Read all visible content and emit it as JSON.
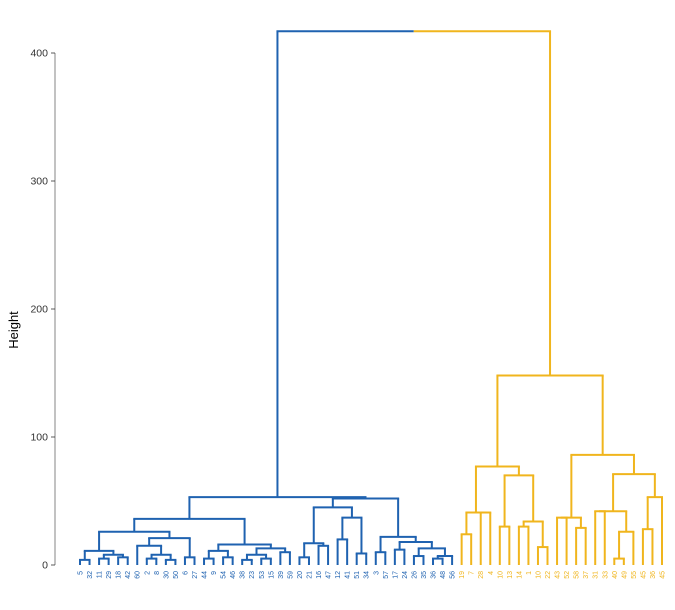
{
  "chart_data": {
    "type": "dendrogram",
    "title": "",
    "xlabel": "",
    "ylabel": "Height",
    "ylim": [
      0,
      420
    ],
    "y_ticks": [
      0,
      100,
      200,
      300,
      400
    ],
    "grid": false,
    "legend": "none",
    "colors": {
      "cluster_1": "#1F62B0",
      "cluster_2": "#F0B51D",
      "axis": "#333333"
    },
    "leaves": [
      {
        "label": "5",
        "cluster": 1
      },
      {
        "label": "32",
        "cluster": 1
      },
      {
        "label": "11",
        "cluster": 1
      },
      {
        "label": "29",
        "cluster": 1
      },
      {
        "label": "18",
        "cluster": 1
      },
      {
        "label": "42",
        "cluster": 1
      },
      {
        "label": "60",
        "cluster": 1
      },
      {
        "label": "2",
        "cluster": 1
      },
      {
        "label": "8",
        "cluster": 1
      },
      {
        "label": "30",
        "cluster": 1
      },
      {
        "label": "50",
        "cluster": 1
      },
      {
        "label": "6",
        "cluster": 1
      },
      {
        "label": "27",
        "cluster": 1
      },
      {
        "label": "44",
        "cluster": 1
      },
      {
        "label": "9",
        "cluster": 1
      },
      {
        "label": "54",
        "cluster": 1
      },
      {
        "label": "46",
        "cluster": 1
      },
      {
        "label": "38",
        "cluster": 1
      },
      {
        "label": "23",
        "cluster": 1
      },
      {
        "label": "53",
        "cluster": 1
      },
      {
        "label": "15",
        "cluster": 1
      },
      {
        "label": "39",
        "cluster": 1
      },
      {
        "label": "59",
        "cluster": 1
      },
      {
        "label": "20",
        "cluster": 1
      },
      {
        "label": "21",
        "cluster": 1
      },
      {
        "label": "16",
        "cluster": 1
      },
      {
        "label": "47",
        "cluster": 1
      },
      {
        "label": "12",
        "cluster": 1
      },
      {
        "label": "41",
        "cluster": 1
      },
      {
        "label": "51",
        "cluster": 1
      },
      {
        "label": "34",
        "cluster": 1
      },
      {
        "label": "3",
        "cluster": 1
      },
      {
        "label": "57",
        "cluster": 1
      },
      {
        "label": "17",
        "cluster": 1
      },
      {
        "label": "24",
        "cluster": 1
      },
      {
        "label": "26",
        "cluster": 1
      },
      {
        "label": "35",
        "cluster": 1
      },
      {
        "label": "36",
        "cluster": 1
      },
      {
        "label": "48",
        "cluster": 1
      },
      {
        "label": "56",
        "cluster": 1
      },
      {
        "label": "19",
        "cluster": 2
      },
      {
        "label": "7",
        "cluster": 2
      },
      {
        "label": "28",
        "cluster": 2
      },
      {
        "label": "4",
        "cluster": 2
      },
      {
        "label": "10",
        "cluster": 2
      },
      {
        "label": "13",
        "cluster": 2
      },
      {
        "label": "14",
        "cluster": 2
      },
      {
        "label": "1",
        "cluster": 2
      },
      {
        "label": "10",
        "cluster": 2
      },
      {
        "label": "22",
        "cluster": 2
      },
      {
        "label": "43",
        "cluster": 2
      },
      {
        "label": "52",
        "cluster": 2
      },
      {
        "label": "58",
        "cluster": 2
      },
      {
        "label": "37",
        "cluster": 2
      },
      {
        "label": "31",
        "cluster": 2
      },
      {
        "label": "33",
        "cluster": 2
      },
      {
        "label": "40",
        "cluster": 2
      },
      {
        "label": "49",
        "cluster": 2
      },
      {
        "label": "55",
        "cluster": 2
      },
      {
        "label": "45",
        "cluster": 2
      },
      {
        "label": "36",
        "cluster": 2
      },
      {
        "label": "45",
        "cluster": 2
      }
    ],
    "merges": [
      {
        "id": "m0",
        "left": 0,
        "right": 1,
        "height": 4
      },
      {
        "id": "m1",
        "left": 2,
        "right": 3,
        "height": 5
      },
      {
        "id": "m2",
        "left": 4,
        "right": 5,
        "height": 6
      },
      {
        "id": "m3",
        "left": "m1",
        "right": "m2",
        "height": 8
      },
      {
        "id": "m4",
        "left": "m0",
        "right": "m3",
        "height": 11
      },
      {
        "id": "m5",
        "left": 7,
        "right": 8,
        "height": 5
      },
      {
        "id": "m6",
        "left": 9,
        "right": 10,
        "height": 4
      },
      {
        "id": "m7",
        "left": "m5",
        "right": "m6",
        "height": 8
      },
      {
        "id": "m8",
        "left": 6,
        "right": "m7",
        "height": 15
      },
      {
        "id": "m9",
        "left": 11,
        "right": 12,
        "height": 6
      },
      {
        "id": "m10",
        "left": "m8",
        "right": "m9",
        "height": 21
      },
      {
        "id": "m11",
        "left": "m4",
        "right": "m10",
        "height": 26
      },
      {
        "id": "m12",
        "left": 13,
        "right": 14,
        "height": 5
      },
      {
        "id": "m13",
        "left": 15,
        "right": 16,
        "height": 6
      },
      {
        "id": "m14",
        "left": "m12",
        "right": "m13",
        "height": 11
      },
      {
        "id": "m15",
        "left": 17,
        "right": 18,
        "height": 4
      },
      {
        "id": "m16",
        "left": 19,
        "right": 20,
        "height": 5
      },
      {
        "id": "m17",
        "left": "m15",
        "right": "m16",
        "height": 8
      },
      {
        "id": "m18",
        "left": 21,
        "right": 22,
        "height": 10
      },
      {
        "id": "m19",
        "left": "m17",
        "right": "m18",
        "height": 13
      },
      {
        "id": "m20",
        "left": "m14",
        "right": "m19",
        "height": 16
      },
      {
        "id": "m21",
        "left": "m11",
        "right": "m20",
        "height": 36
      },
      {
        "id": "m22",
        "left": 23,
        "right": 24,
        "height": 6
      },
      {
        "id": "m23",
        "left": 25,
        "right": 26,
        "height": 15
      },
      {
        "id": "m24",
        "left": "m22",
        "right": "m23",
        "height": 17
      },
      {
        "id": "m25",
        "left": 27,
        "right": 28,
        "height": 20
      },
      {
        "id": "m26",
        "left": 29,
        "right": 30,
        "height": 9
      },
      {
        "id": "m27",
        "left": "m25",
        "right": "m26",
        "height": 37
      },
      {
        "id": "m28",
        "left": "m24",
        "right": "m27",
        "height": 45
      },
      {
        "id": "m29",
        "left": 31,
        "right": 32,
        "height": 10
      },
      {
        "id": "m30",
        "left": 33,
        "right": 34,
        "height": 12
      },
      {
        "id": "m31",
        "left": 35,
        "right": 36,
        "height": 7
      },
      {
        "id": "m32",
        "left": 37,
        "right": 38,
        "height": 5
      },
      {
        "id": "m33",
        "left": "m32",
        "right": 39,
        "height": 7
      },
      {
        "id": "m34",
        "left": "m31",
        "right": "m33",
        "height": 13
      },
      {
        "id": "m35",
        "left": "m30",
        "right": "m34",
        "height": 18
      },
      {
        "id": "m36",
        "left": "m29",
        "right": "m35",
        "height": 22
      },
      {
        "id": "m37",
        "left": "m28",
        "right": "m36",
        "height": 52
      },
      {
        "id": "m38",
        "left": "m21",
        "right": "m37",
        "height": 53
      },
      {
        "id": "m39",
        "left": 40,
        "right": 41,
        "height": 24
      },
      {
        "id": "m40",
        "left": 42,
        "right": 43,
        "height": 41
      },
      {
        "id": "m41",
        "left": "m39",
        "right": "m40",
        "height": 41
      },
      {
        "id": "m42",
        "left": 44,
        "right": 45,
        "height": 30
      },
      {
        "id": "m43",
        "left": 46,
        "right": 47,
        "height": 30
      },
      {
        "id": "m44",
        "left": 48,
        "right": 49,
        "height": 14
      },
      {
        "id": "m45",
        "left": "m43",
        "right": "m44",
        "height": 34
      },
      {
        "id": "m46",
        "left": "m42",
        "right": "m45",
        "height": 70
      },
      {
        "id": "m47",
        "left": "m41",
        "right": "m46",
        "height": 77
      },
      {
        "id": "m48",
        "left": 50,
        "right": 51,
        "height": 37
      },
      {
        "id": "m49",
        "left": 52,
        "right": 53,
        "height": 29
      },
      {
        "id": "m50",
        "left": "m48",
        "right": "m49",
        "height": 37
      },
      {
        "id": "m51",
        "left": 54,
        "right": 55,
        "height": 42
      },
      {
        "id": "m52",
        "left": 56,
        "right": 57,
        "height": 5
      },
      {
        "id": "m53",
        "left": "m52",
        "right": 58,
        "height": 26
      },
      {
        "id": "m54",
        "left": "m51",
        "right": "m53",
        "height": 42
      },
      {
        "id": "m55",
        "left": 59,
        "right": 60,
        "height": 28
      },
      {
        "id": "m56",
        "left": "m55",
        "right": 61,
        "height": 53
      },
      {
        "id": "m57",
        "left": "m54",
        "right": "m56",
        "height": 71
      },
      {
        "id": "m58",
        "left": "m50",
        "right": "m57",
        "height": 86
      },
      {
        "id": "m59",
        "left": "m47",
        "right": "m58",
        "height": 148
      },
      {
        "id": "m60",
        "left": "m38",
        "right": "m59",
        "height": 417
      }
    ]
  }
}
